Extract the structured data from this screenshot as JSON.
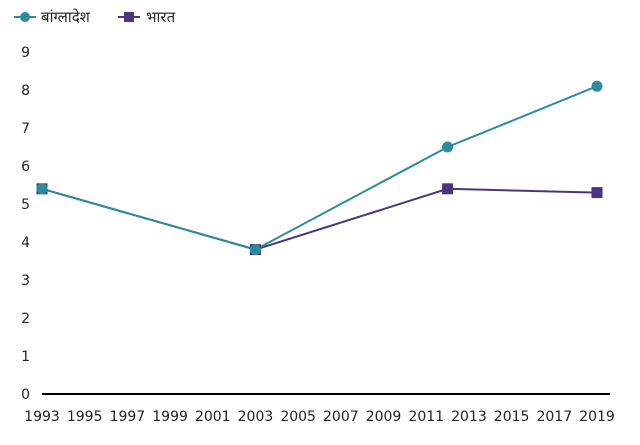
{
  "chart_data": {
    "type": "line",
    "title": "",
    "xlabel": "",
    "ylabel": "",
    "x_ticks": [
      "1993",
      "1995",
      "1997",
      "1999",
      "2001",
      "2003",
      "2005",
      "2007",
      "2009",
      "2011",
      "2013",
      "2015",
      "2017",
      "2019"
    ],
    "xlim": [
      1993,
      2019
    ],
    "y_ticks": [
      "0",
      "1",
      "2",
      "3",
      "4",
      "5",
      "6",
      "7",
      "8",
      "9"
    ],
    "ylim": [
      0,
      9
    ],
    "grid": false,
    "legend_position": "top-left",
    "series": [
      {
        "name": "बांग्लादेश",
        "color": "#2a8c9c",
        "marker": "circle",
        "points": [
          {
            "x": 1993,
            "y": 5.4
          },
          {
            "x": 2003,
            "y": 3.8
          },
          {
            "x": 2012,
            "y": 6.5
          },
          {
            "x": 2019,
            "y": 8.1
          }
        ]
      },
      {
        "name": "भारत",
        "color": "#4a3580",
        "marker": "square",
        "points": [
          {
            "x": 1993,
            "y": 5.4
          },
          {
            "x": 2003,
            "y": 3.8
          },
          {
            "x": 2012,
            "y": 5.4
          },
          {
            "x": 2019,
            "y": 5.3
          }
        ]
      }
    ]
  }
}
